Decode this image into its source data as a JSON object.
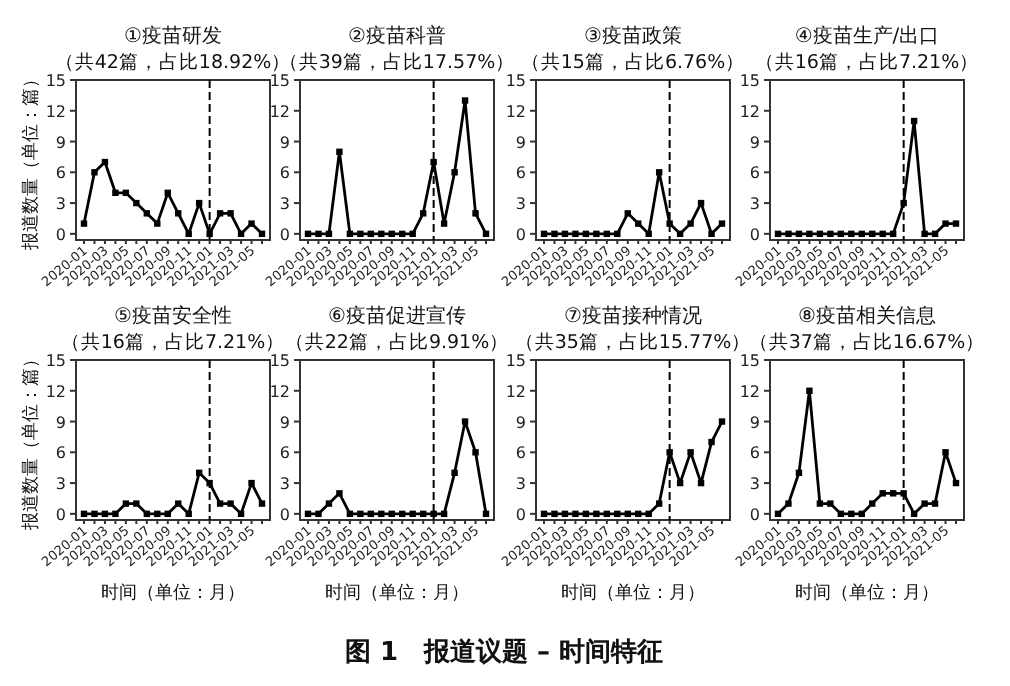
{
  "chart_data": [
    {
      "type": "line",
      "title": "①疫苗研发",
      "subtitle": "（共42篇，占比18.92%）",
      "ylabel": "报道数量（单位：篇）",
      "categories": [
        "2020-01",
        null,
        "2020-03",
        null,
        "2020-05",
        null,
        "2020-07",
        null,
        "2020-09",
        null,
        "2020-11",
        null,
        "2021-01",
        null,
        "2021-03",
        null,
        "2021-05",
        null
      ],
      "values": [
        1,
        6,
        7,
        4,
        4,
        3,
        2,
        1,
        4,
        2,
        0,
        3,
        0,
        2,
        2,
        0,
        1,
        0
      ],
      "color": "#000000",
      "marker": "square",
      "ylim": [
        -0.6,
        15
      ],
      "yticks": [
        0,
        3,
        6,
        9,
        12,
        15
      ],
      "ref_lines": [
        {
          "axis": "x",
          "value": "2021-01",
          "line_style": "dashed",
          "color": "#000000"
        }
      ]
    },
    {
      "type": "line",
      "title": "②疫苗科普",
      "subtitle": "（共39篇，占比17.57%）",
      "categories": [
        "2020-01",
        null,
        "2020-03",
        null,
        "2020-05",
        null,
        "2020-07",
        null,
        "2020-09",
        null,
        "2020-11",
        null,
        "2021-01",
        null,
        "2021-03",
        null,
        "2021-05",
        null
      ],
      "values": [
        0,
        0,
        0,
        8,
        0,
        0,
        0,
        0,
        0,
        0,
        0,
        2,
        7,
        1,
        6,
        13,
        2,
        0
      ],
      "color": "#000000",
      "marker": "square",
      "ylim": [
        -0.6,
        15
      ],
      "yticks": [
        0,
        3,
        6,
        9,
        12,
        15
      ],
      "ref_lines": [
        {
          "axis": "x",
          "value": "2021-01",
          "line_style": "dashed",
          "color": "#000000"
        }
      ]
    },
    {
      "type": "line",
      "title": "③疫苗政策",
      "subtitle": "（共15篇，占比6.76%）",
      "categories": [
        "2020-01",
        null,
        "2020-03",
        null,
        "2020-05",
        null,
        "2020-07",
        null,
        "2020-09",
        null,
        "2020-11",
        null,
        "2021-01",
        null,
        "2021-03",
        null,
        "2021-05",
        null
      ],
      "values": [
        0,
        0,
        0,
        0,
        0,
        0,
        0,
        0,
        2,
        1,
        0,
        6,
        1,
        0,
        1,
        3,
        0,
        1
      ],
      "color": "#000000",
      "marker": "square",
      "ylim": [
        -0.6,
        15
      ],
      "yticks": [
        0,
        3,
        6,
        9,
        12,
        15
      ],
      "ref_lines": [
        {
          "axis": "x",
          "value": "2021-01",
          "line_style": "dashed",
          "color": "#000000"
        }
      ]
    },
    {
      "type": "line",
      "title": "④疫苗生产/出口",
      "subtitle": "（共16篇，占比7.21%）",
      "categories": [
        "2020-01",
        null,
        "2020-03",
        null,
        "2020-05",
        null,
        "2020-07",
        null,
        "2020-09",
        null,
        "2020-11",
        null,
        "2021-01",
        null,
        "2021-03",
        null,
        "2021-05",
        null
      ],
      "values": [
        0,
        0,
        0,
        0,
        0,
        0,
        0,
        0,
        0,
        0,
        0,
        0,
        3,
        11,
        0,
        0,
        1,
        1
      ],
      "color": "#000000",
      "marker": "square",
      "ylim": [
        -0.6,
        15
      ],
      "yticks": [
        0,
        3,
        6,
        9,
        12,
        15
      ],
      "ref_lines": [
        {
          "axis": "x",
          "value": "2021-01",
          "line_style": "dashed",
          "color": "#000000"
        }
      ]
    },
    {
      "type": "line",
      "title": "⑤疫苗安全性",
      "subtitle": "（共16篇，占比7.21%）",
      "ylabel": "报道数量（单位：篇）",
      "xlabel": "时间（单位：月）",
      "categories": [
        "2020-01",
        null,
        "2020-03",
        null,
        "2020-05",
        null,
        "2020-07",
        null,
        "2020-09",
        null,
        "2020-11",
        null,
        "2021-01",
        null,
        "2021-03",
        null,
        "2021-05",
        null
      ],
      "values": [
        0,
        0,
        0,
        0,
        1,
        1,
        0,
        0,
        0,
        1,
        0,
        4,
        3,
        1,
        1,
        0,
        3,
        1
      ],
      "color": "#000000",
      "marker": "square",
      "ylim": [
        -0.6,
        15
      ],
      "yticks": [
        0,
        3,
        6,
        9,
        12,
        15
      ],
      "ref_lines": [
        {
          "axis": "x",
          "value": "2021-01",
          "line_style": "dashed",
          "color": "#000000"
        }
      ]
    },
    {
      "type": "line",
      "title": "⑥疫苗促进宣传",
      "subtitle": "（共22篇，占比9.91%）",
      "xlabel": "时间（单位：月）",
      "categories": [
        "2020-01",
        null,
        "2020-03",
        null,
        "2020-05",
        null,
        "2020-07",
        null,
        "2020-09",
        null,
        "2020-11",
        null,
        "2021-01",
        null,
        "2021-03",
        null,
        "2021-05",
        null
      ],
      "values": [
        0,
        0,
        1,
        2,
        0,
        0,
        0,
        0,
        0,
        0,
        0,
        0,
        0,
        0,
        4,
        9,
        6,
        0
      ],
      "color": "#000000",
      "marker": "square",
      "ylim": [
        -0.6,
        15
      ],
      "yticks": [
        0,
        3,
        6,
        9,
        12,
        15
      ],
      "ref_lines": [
        {
          "axis": "x",
          "value": "2021-01",
          "line_style": "dashed",
          "color": "#000000"
        }
      ]
    },
    {
      "type": "line",
      "title": "⑦疫苗接种情况",
      "subtitle": "（共35篇，占比15.77%）",
      "xlabel": "时间（单位：月）",
      "categories": [
        "2020-01",
        null,
        "2020-03",
        null,
        "2020-05",
        null,
        "2020-07",
        null,
        "2020-09",
        null,
        "2020-11",
        null,
        "2021-01",
        null,
        "2021-03",
        null,
        "2021-05",
        null
      ],
      "values": [
        0,
        0,
        0,
        0,
        0,
        0,
        0,
        0,
        0,
        0,
        0,
        1,
        6,
        3,
        6,
        3,
        7,
        9
      ],
      "color": "#000000",
      "marker": "square",
      "ylim": [
        -0.6,
        15
      ],
      "yticks": [
        0,
        3,
        6,
        9,
        12,
        15
      ],
      "ref_lines": [
        {
          "axis": "x",
          "value": "2021-01",
          "line_style": "dashed",
          "color": "#000000"
        }
      ]
    },
    {
      "type": "line",
      "title": "⑧疫苗相关信息",
      "subtitle": "（共37篇，占比16.67%）",
      "xlabel": "时间（单位：月）",
      "categories": [
        "2020-01",
        null,
        "2020-03",
        null,
        "2020-05",
        null,
        "2020-07",
        null,
        "2020-09",
        null,
        "2020-11",
        null,
        "2021-01",
        null,
        "2021-03",
        null,
        "2021-05",
        null
      ],
      "values": [
        0,
        1,
        4,
        12,
        1,
        1,
        0,
        0,
        0,
        1,
        2,
        2,
        2,
        0,
        1,
        1,
        6,
        3
      ],
      "color": "#000000",
      "marker": "square",
      "ylim": [
        -0.6,
        15
      ],
      "yticks": [
        0,
        3,
        6,
        9,
        12,
        15
      ],
      "ref_lines": [
        {
          "axis": "x",
          "value": "2021-01",
          "line_style": "dashed",
          "color": "#000000"
        }
      ],
      "annotations": [
        "图 1　报道议题 – 时间特征"
      ]
    }
  ]
}
